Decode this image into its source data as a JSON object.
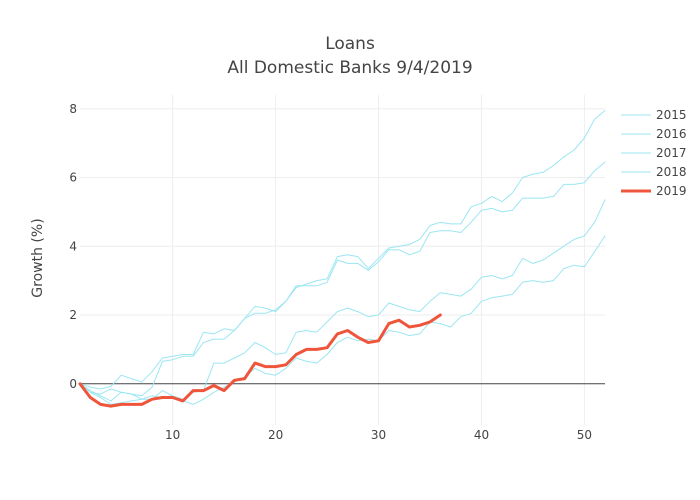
{
  "chart_data": {
    "type": "line",
    "title": "Loans",
    "subtitle": "All Domestic Banks 9/4/2019",
    "xlabel": "",
    "ylabel": "Growth (%)",
    "xlim": [
      1,
      52
    ],
    "ylim": [
      -1.2,
      8.4
    ],
    "x_ticks": [
      10,
      20,
      30,
      40,
      50
    ],
    "y_ticks": [
      0,
      2,
      4,
      6,
      8
    ],
    "grid": true,
    "legend_position": "right",
    "colors": {
      "faint": "#9be6f2",
      "highlight": "#ef553b",
      "zero_line": "#444444",
      "grid": "#eeeeee"
    },
    "series": [
      {
        "name": "2015",
        "style": "faint",
        "x": [
          1,
          2,
          3,
          4,
          5,
          6,
          7,
          8,
          9,
          10,
          11,
          12,
          13,
          14,
          15,
          16,
          17,
          18,
          19,
          20,
          21,
          22,
          23,
          24,
          25,
          26,
          27,
          28,
          29,
          30,
          31,
          32,
          33,
          34,
          35,
          36,
          37,
          38,
          39,
          40,
          41,
          42,
          43,
          44,
          45,
          46,
          47,
          48,
          49,
          50,
          51,
          52
        ],
        "values": [
          0,
          -0.1,
          -0.15,
          -0.08,
          0.25,
          0.15,
          0.05,
          0.35,
          0.75,
          0.8,
          0.85,
          0.85,
          1.5,
          1.45,
          1.6,
          1.55,
          1.9,
          2.25,
          2.2,
          2.1,
          2.4,
          2.8,
          2.9,
          3.0,
          3.05,
          3.7,
          3.75,
          3.7,
          3.35,
          3.65,
          3.95,
          4.0,
          4.05,
          4.2,
          4.6,
          4.7,
          4.65,
          4.65,
          5.15,
          5.25,
          5.45,
          5.3,
          5.55,
          6.0,
          6.1,
          6.15,
          6.35,
          6.6,
          6.8,
          7.15,
          7.7,
          7.95
        ]
      },
      {
        "name": "2016",
        "style": "faint",
        "x": [
          1,
          2,
          3,
          4,
          5,
          6,
          7,
          8,
          9,
          10,
          11,
          12,
          13,
          14,
          15,
          16,
          17,
          18,
          19,
          20,
          21,
          22,
          23,
          24,
          25,
          26,
          27,
          28,
          29,
          30,
          31,
          32,
          33,
          34,
          35,
          36,
          37,
          38,
          39,
          40,
          41,
          42,
          43,
          44,
          45,
          46,
          47,
          48,
          49,
          50,
          51,
          52
        ],
        "values": [
          0,
          -0.25,
          -0.3,
          -0.15,
          -0.25,
          -0.3,
          -0.35,
          -0.1,
          0.65,
          0.7,
          0.8,
          0.8,
          1.2,
          1.3,
          1.3,
          1.55,
          1.9,
          2.05,
          2.05,
          2.15,
          2.4,
          2.85,
          2.85,
          2.85,
          2.95,
          3.6,
          3.5,
          3.5,
          3.3,
          3.55,
          3.9,
          3.9,
          3.75,
          3.85,
          4.4,
          4.45,
          4.45,
          4.4,
          4.7,
          5.05,
          5.1,
          5.0,
          5.05,
          5.4,
          5.4,
          5.4,
          5.45,
          5.8,
          5.8,
          5.85,
          6.2,
          6.45
        ]
      },
      {
        "name": "2017",
        "style": "faint",
        "x": [
          1,
          2,
          3,
          4,
          5,
          6,
          7,
          8,
          9,
          10,
          11,
          12,
          13,
          14,
          15,
          16,
          17,
          18,
          19,
          20,
          21,
          22,
          23,
          24,
          25,
          26,
          27,
          28,
          29,
          30,
          31,
          32,
          33,
          34,
          35,
          36,
          37,
          38,
          39,
          40,
          41,
          42,
          43,
          44,
          45,
          46,
          47,
          48,
          49,
          50,
          51,
          52
        ],
        "values": [
          0,
          -0.2,
          -0.35,
          -0.5,
          -0.25,
          -0.3,
          -0.45,
          -0.45,
          -0.2,
          -0.35,
          -0.45,
          -0.25,
          -0.2,
          0.6,
          0.6,
          0.75,
          0.9,
          1.2,
          1.05,
          0.85,
          0.9,
          1.5,
          1.55,
          1.5,
          1.8,
          2.1,
          2.2,
          2.1,
          1.95,
          2.0,
          2.35,
          2.25,
          2.15,
          2.1,
          2.4,
          2.65,
          2.6,
          2.55,
          2.75,
          3.1,
          3.15,
          3.05,
          3.15,
          3.65,
          3.5,
          3.6,
          3.8,
          4.0,
          4.2,
          4.3,
          4.7,
          5.35
        ]
      },
      {
        "name": "2018",
        "style": "faint",
        "x": [
          1,
          2,
          3,
          4,
          5,
          6,
          7,
          8,
          9,
          10,
          11,
          12,
          13,
          14,
          15,
          16,
          17,
          18,
          19,
          20,
          21,
          22,
          23,
          24,
          25,
          26,
          27,
          28,
          29,
          30,
          31,
          32,
          33,
          34,
          35,
          36,
          37,
          38,
          39,
          40,
          41,
          42,
          43,
          44,
          45,
          46,
          47,
          48,
          49,
          50,
          51,
          52
        ],
        "values": [
          0,
          -0.25,
          -0.4,
          -0.6,
          -0.55,
          -0.5,
          -0.45,
          -0.35,
          -0.4,
          -0.35,
          -0.5,
          -0.6,
          -0.45,
          -0.25,
          -0.1,
          0.05,
          0.2,
          0.45,
          0.3,
          0.25,
          0.45,
          0.75,
          0.65,
          0.6,
          0.85,
          1.2,
          1.35,
          1.25,
          1.3,
          1.25,
          1.55,
          1.5,
          1.4,
          1.45,
          1.8,
          1.75,
          1.65,
          1.95,
          2.05,
          2.4,
          2.5,
          2.55,
          2.6,
          2.95,
          3.0,
          2.95,
          3.0,
          3.35,
          3.45,
          3.4,
          3.85,
          4.3
        ]
      },
      {
        "name": "2019",
        "style": "highlight",
        "x": [
          1,
          2,
          3,
          4,
          5,
          6,
          7,
          8,
          9,
          10,
          11,
          12,
          13,
          14,
          15,
          16,
          17,
          18,
          19,
          20,
          21,
          22,
          23,
          24,
          25,
          26,
          27,
          28,
          29,
          30,
          31,
          32,
          33,
          34,
          35,
          36
        ],
        "values": [
          0,
          -0.4,
          -0.6,
          -0.65,
          -0.6,
          -0.6,
          -0.6,
          -0.45,
          -0.4,
          -0.4,
          -0.5,
          -0.2,
          -0.2,
          -0.05,
          -0.2,
          0.1,
          0.15,
          0.6,
          0.5,
          0.5,
          0.55,
          0.85,
          1.0,
          1.0,
          1.05,
          1.45,
          1.55,
          1.35,
          1.2,
          1.25,
          1.75,
          1.85,
          1.65,
          1.7,
          1.8,
          2.0
        ]
      }
    ]
  }
}
